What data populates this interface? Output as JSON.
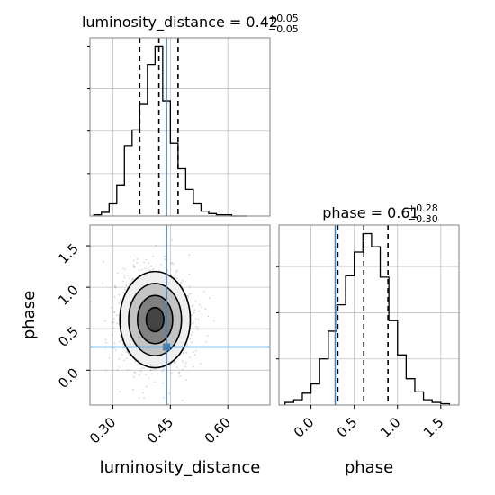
{
  "chart_data": {
    "type": "corner",
    "parameters": [
      "luminosity_distance",
      "phase"
    ],
    "truth": {
      "luminosity_distance": 0.44,
      "phase": 0.28
    },
    "colors": {
      "truth": "#4682b4",
      "hist": "#000000",
      "grid": "#c0c0c0",
      "frame": "#808080"
    },
    "panels": {
      "luminosity_distance_hist": {
        "title_base": "luminosity_distance = 0.42",
        "title_plus": "+0.05",
        "title_minus": "−0.05",
        "quantiles": [
          0.37,
          0.42,
          0.47
        ],
        "xlim": [
          0.24,
          0.71
        ],
        "bin_edges": [
          0.25,
          0.27,
          0.29,
          0.31,
          0.33,
          0.35,
          0.37,
          0.39,
          0.41,
          0.43,
          0.45,
          0.47,
          0.49,
          0.51,
          0.53,
          0.55,
          0.57,
          0.59,
          0.61,
          0.63,
          0.65
        ],
        "counts": [
          1,
          3,
          10,
          25,
          58,
          71,
          92,
          125,
          140,
          95,
          60,
          39,
          22,
          10,
          4,
          2,
          1,
          1,
          0,
          0
        ],
        "grid": true
      },
      "phase_hist": {
        "title_base": "phase = 0.61",
        "title_plus": "+0.28",
        "title_minus": "−0.30",
        "quantiles": [
          0.31,
          0.61,
          0.89
        ],
        "xlim": [
          -0.37,
          1.71
        ],
        "xticks": [
          0.0,
          0.5,
          1.0,
          1.5
        ],
        "xtick_labels": [
          "0.0",
          "0.5",
          "1.0",
          "1.5"
        ],
        "xlabel": "phase",
        "bin_edges": [
          -0.3,
          -0.2,
          -0.1,
          0.0,
          0.1,
          0.2,
          0.3,
          0.4,
          0.5,
          0.6,
          0.7,
          0.8,
          0.9,
          1.0,
          1.1,
          1.2,
          1.3,
          1.4,
          1.5,
          1.6
        ],
        "counts": [
          2,
          4,
          9,
          16,
          35,
          56,
          76,
          98,
          116,
          130,
          120,
          97,
          64,
          38,
          20,
          10,
          4,
          2,
          1
        ],
        "grid": true
      },
      "joint": {
        "xlim": [
          0.24,
          0.71
        ],
        "ylim": [
          -0.42,
          1.75
        ],
        "xticks": [
          0.3,
          0.45,
          0.6
        ],
        "xtick_labels": [
          "0.30",
          "0.45",
          "0.60"
        ],
        "yticks": [
          0.0,
          0.5,
          1.0,
          1.5
        ],
        "ytick_labels": [
          "0.0",
          "0.5",
          "1.0",
          "1.5"
        ],
        "xlabel": "luminosity_distance",
        "ylabel": "phase",
        "center": [
          0.41,
          0.61
        ],
        "sigma": [
          0.046,
          0.29
        ],
        "contour_levels_sigma": [
          0.5,
          1.0,
          1.5,
          2.0
        ],
        "contour_fills": [
          "#444444",
          "#808080",
          "#c4c4c4",
          "#f0f0f0"
        ],
        "grid": true
      }
    }
  }
}
